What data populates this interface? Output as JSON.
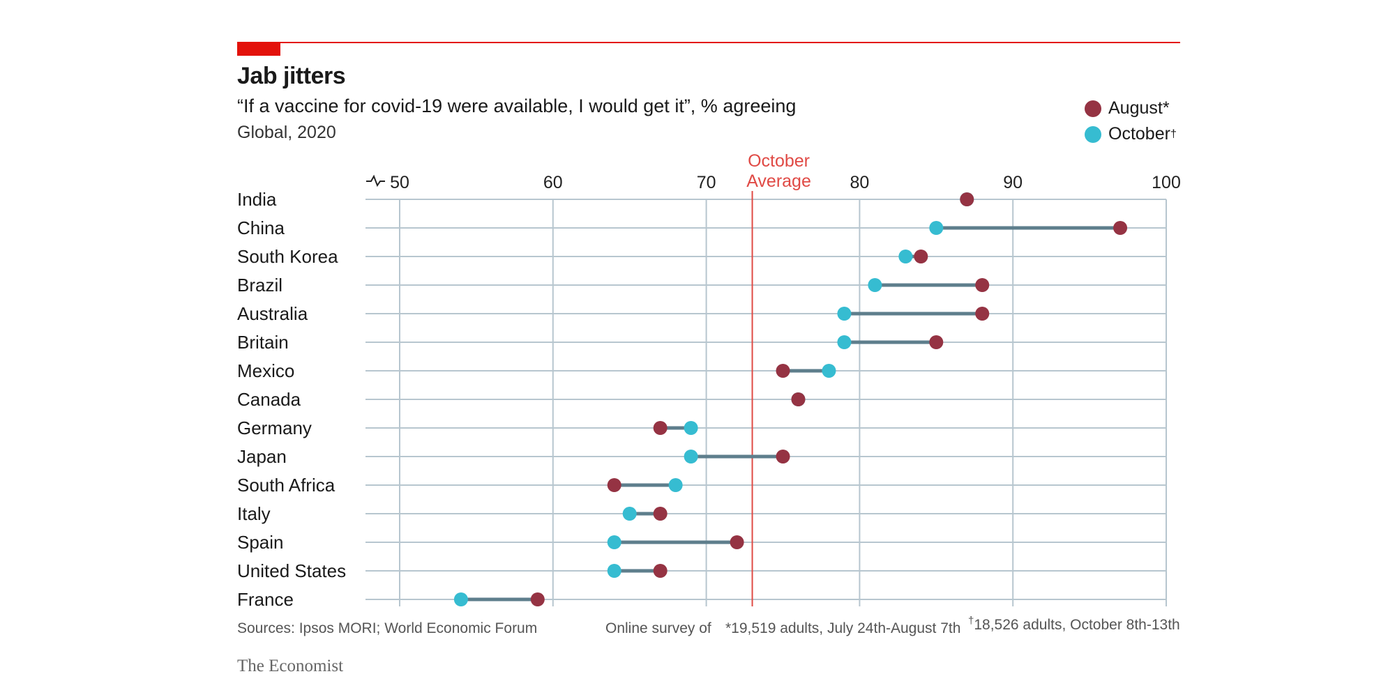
{
  "header": {
    "title": "Jab jitters",
    "subtitle": "“If a vaccine for covid-19 were available, I would get it”, % agreeing",
    "scope": "Global, 2020"
  },
  "legend": {
    "august_label": "August*",
    "october_label": "October",
    "october_mark": "†"
  },
  "footer": {
    "sources": "Sources: Ipsos MORI; World Economic Forum",
    "survey_prefix": "Online survey of",
    "august_note": "*19,519 adults, July 24th-August 7th",
    "october_mark": "†",
    "october_note": "18,526 adults, October 8th-13th",
    "brand": "The Economist"
  },
  "colors": {
    "august": "#953343",
    "october": "#36bcd1",
    "connector": "#5e7e8c",
    "gridline": "#b7c6cf",
    "reference": "#e04a45",
    "brand_red": "#e3120b"
  },
  "chart_data": {
    "type": "dot-plot",
    "xlim": [
      50,
      100
    ],
    "x_ticks": [
      50,
      60,
      70,
      80,
      90,
      100
    ],
    "axis_break": true,
    "reference_line": {
      "value": 73,
      "label_line1": "October",
      "label_line2": "Average"
    },
    "series": [
      {
        "name": "August*",
        "key": "august"
      },
      {
        "name": "October",
        "key": "october"
      }
    ],
    "rows": [
      {
        "country": "India",
        "august": 87,
        "october": 87
      },
      {
        "country": "China",
        "august": 97,
        "october": 85
      },
      {
        "country": "South Korea",
        "august": 84,
        "october": 83
      },
      {
        "country": "Brazil",
        "august": 88,
        "october": 81
      },
      {
        "country": "Australia",
        "august": 88,
        "october": 79
      },
      {
        "country": "Britain",
        "august": 85,
        "october": 79
      },
      {
        "country": "Mexico",
        "august": 75,
        "october": 78
      },
      {
        "country": "Canada",
        "august": 76,
        "october": 76
      },
      {
        "country": "Germany",
        "august": 67,
        "october": 69
      },
      {
        "country": "Japan",
        "august": 75,
        "october": 69
      },
      {
        "country": "South Africa",
        "august": 64,
        "october": 68
      },
      {
        "country": "Italy",
        "august": 67,
        "october": 65
      },
      {
        "country": "Spain",
        "august": 72,
        "october": 64
      },
      {
        "country": "United States",
        "august": 67,
        "october": 64
      },
      {
        "country": "France",
        "august": 59,
        "october": 54
      }
    ]
  }
}
